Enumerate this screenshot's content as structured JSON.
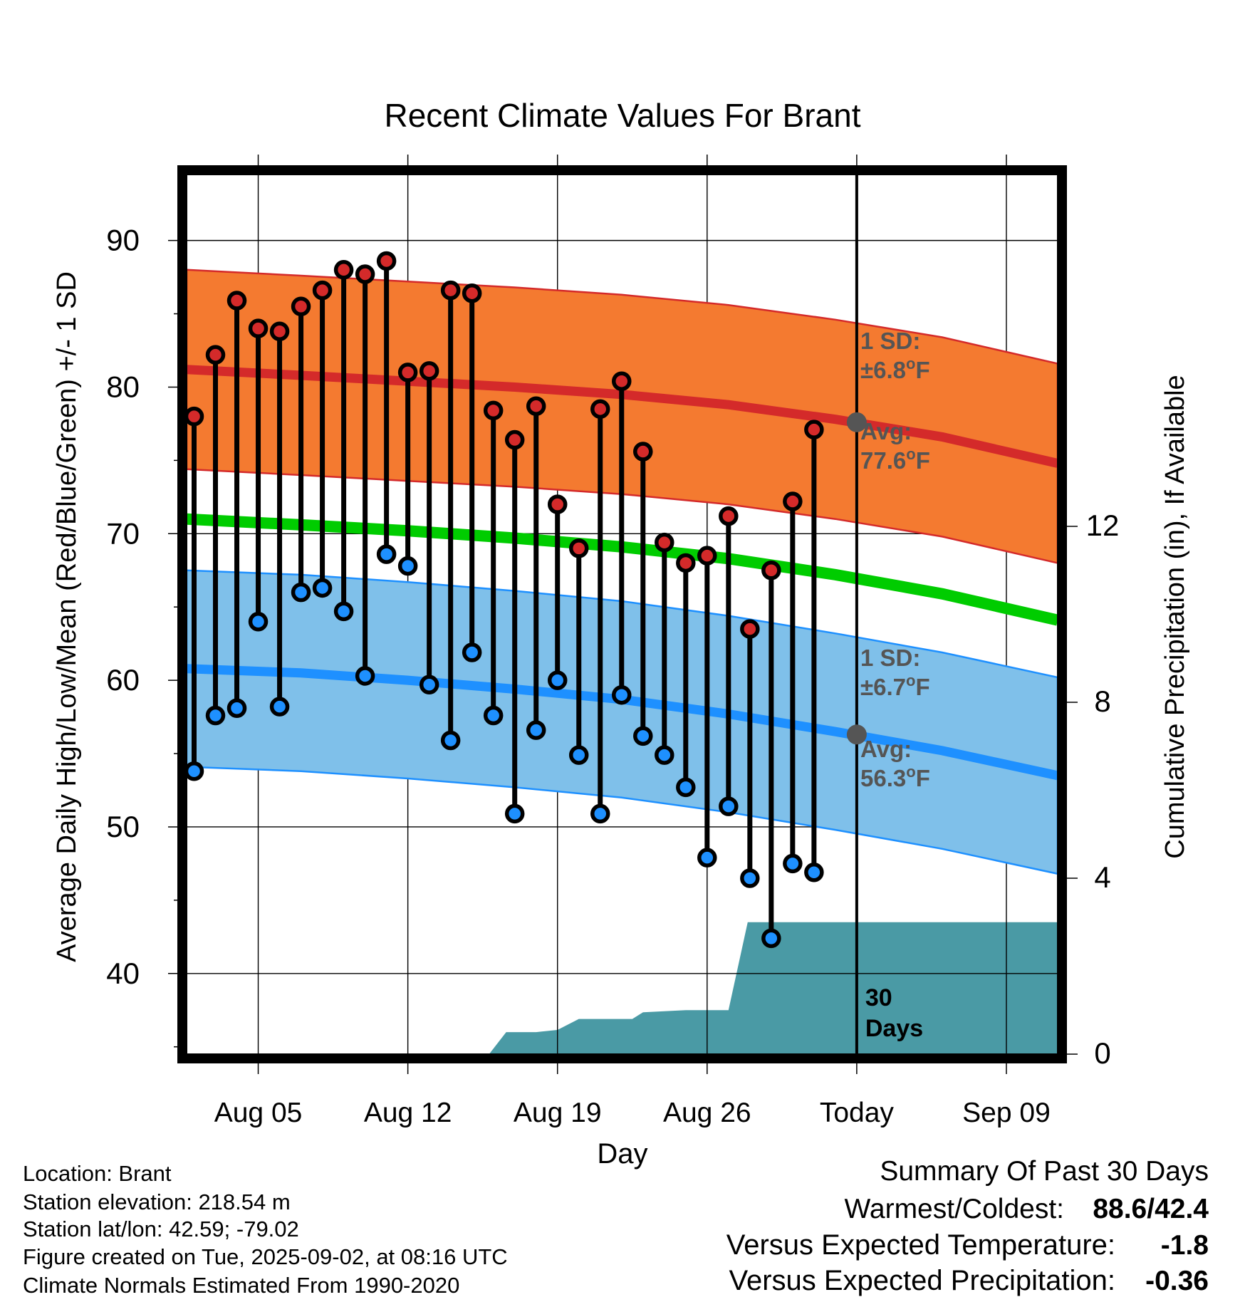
{
  "chart_data": {
    "type": "line",
    "title": "Recent Climate Values For Brant",
    "xlabel": "Day",
    "ylabel": "Average Daily High/Low/Mean (Red/Blue/Green) +/- 1 SD",
    "y2label": "Cumulative Precipitation (in), If Available",
    "ylim": [
      34.5,
      94.5
    ],
    "y2lim": [
      0,
      20
    ],
    "xlim": [
      -0.35,
      40.4
    ],
    "x_ticks": [
      {
        "day": 3,
        "label": "Aug 05"
      },
      {
        "day": 10,
        "label": "Aug 12"
      },
      {
        "day": 17,
        "label": "Aug 19"
      },
      {
        "day": 24,
        "label": "Aug 26"
      },
      {
        "day": 31,
        "label": "Today"
      },
      {
        "day": 38,
        "label": "Sep 09"
      }
    ],
    "y_ticks": [
      40,
      50,
      60,
      70,
      80,
      90
    ],
    "y_minor_ticks": [
      35,
      45,
      55,
      65,
      75,
      85
    ],
    "y2_ticks": [
      0,
      4,
      8,
      12
    ],
    "grid": true,
    "day_zero": "Aug 02",
    "series": [
      {
        "name": "High",
        "color": "#d42a2a",
        "values": [
          78.0,
          82.2,
          85.9,
          84.0,
          83.8,
          85.5,
          86.6,
          88.0,
          87.7,
          88.6,
          81.0,
          81.1,
          86.6,
          86.4,
          78.4,
          76.4,
          78.7,
          72.0,
          69.0,
          78.5,
          80.4,
          75.6,
          69.4,
          68.0,
          68.5,
          71.2,
          63.5,
          67.5,
          72.2,
          77.1
        ]
      },
      {
        "name": "Low",
        "color": "#1e90ff",
        "values": [
          53.8,
          57.6,
          58.1,
          64.0,
          58.2,
          66.0,
          66.3,
          64.7,
          60.3,
          68.6,
          67.8,
          59.7,
          55.9,
          61.9,
          57.6,
          50.9,
          56.6,
          60.0,
          54.9,
          50.9,
          59.0,
          56.2,
          54.9,
          52.7,
          47.9,
          51.4,
          46.5,
          42.4,
          47.5,
          46.9
        ]
      }
    ],
    "normals": {
      "x": [
        -0.35,
        5,
        10,
        15,
        20,
        25,
        30,
        35,
        40.4
      ],
      "high_mean": [
        81.2,
        80.8,
        80.4,
        80.0,
        79.5,
        78.8,
        77.8,
        76.6,
        74.8
      ],
      "high_sd": 6.8,
      "low_mean": [
        60.8,
        60.5,
        60.0,
        59.4,
        58.7,
        57.7,
        56.5,
        55.2,
        53.5
      ],
      "low_sd": 6.7,
      "mean": [
        71.0,
        70.6,
        70.2,
        69.7,
        69.1,
        68.3,
        67.2,
        65.9,
        64.1
      ]
    },
    "precipitation": {
      "x": [
        13.8,
        14.6,
        16.0,
        17.0,
        18.0,
        20.5,
        21.0,
        23.0,
        24.5,
        25.0,
        25.9,
        40.4
      ],
      "values": [
        0.0,
        0.5,
        0.5,
        0.55,
        0.8,
        0.8,
        0.95,
        1.0,
        1.0,
        1.0,
        3.0,
        3.0
      ]
    },
    "annotations": {
      "high_sd_line1": "1 SD:",
      "high_sd_line2": "±6.8",
      "high_avg_line1": "Avg:",
      "high_avg_line2": "77.6",
      "high_avg_value": 77.6,
      "low_sd_line1": "1 SD:",
      "low_sd_line2": "±6.7",
      "low_avg_line1": "Avg:",
      "low_avg_line2": "56.3",
      "low_avg_value": 56.3,
      "degree_mark": "o",
      "unit": "F",
      "today_day": 31,
      "days_line1": "30",
      "days_line2": "Days"
    }
  },
  "info": {
    "location": "Location: Brant",
    "elevation": "Station elevation: 218.54 m",
    "latlon": "Station lat/lon: 42.59; -79.02",
    "created": "Figure created on Tue, 2025-09-02, at 08:16 UTC",
    "normals": "Climate Normals Estimated From 1990-2020"
  },
  "summary": {
    "title": "Summary Of Past 30 Days",
    "warmest_label": "Warmest/Coldest:",
    "warmest": "88.6",
    "slash": "/",
    "coldest": "42.4",
    "temp_label": "Versus Expected Temperature:",
    "temp_value": "-1.8",
    "temp_color": "#1e90ff",
    "precip_label": "Versus Expected Precipitation:",
    "precip_value": "-0.36",
    "precip_color": "#a0522d"
  },
  "colors": {
    "high_band": "#f47a30",
    "high_line": "#d42a2a",
    "low_band": "#7fc0ea",
    "low_line": "#1e90ff",
    "mean_line": "#00cc00",
    "precip_fill": "#4a9aa5",
    "avg_marker": "#555555"
  }
}
